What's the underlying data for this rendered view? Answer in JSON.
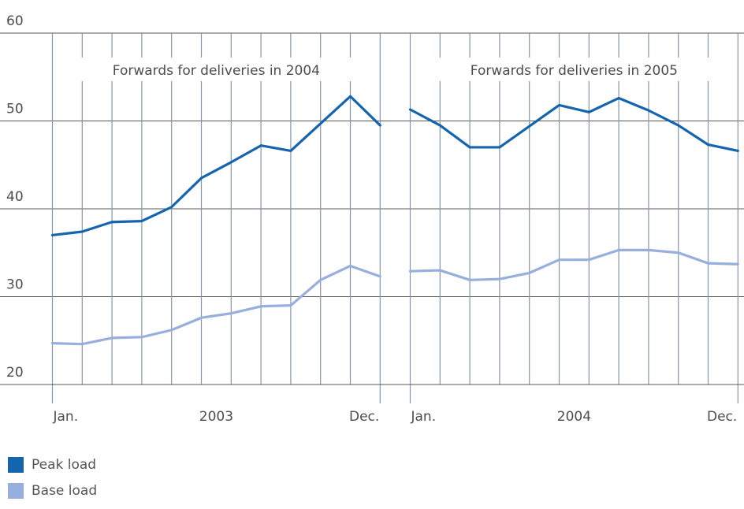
{
  "chart_data": {
    "type": "line",
    "ylim": [
      20,
      60
    ],
    "yticks": [
      "20",
      "30",
      "40",
      "50",
      "60"
    ],
    "panels": [
      {
        "title": "Forwards for deliveries in 2004",
        "x_labels": [
          "Jan.",
          "2003",
          "Dec."
        ],
        "series": [
          {
            "name": "Peak load",
            "color": "#1565ae",
            "values": [
              37.0,
              37.4,
              38.5,
              38.6,
              40.2,
              43.5,
              45.3,
              47.2,
              46.6,
              49.7,
              52.8,
              49.5
            ]
          },
          {
            "name": "Base load",
            "color": "#97afdc",
            "values": [
              24.7,
              24.6,
              25.3,
              25.4,
              26.2,
              27.6,
              28.1,
              28.9,
              29.0,
              31.9,
              33.5,
              32.3
            ]
          }
        ]
      },
      {
        "title": "Forwards for deliveries in 2005",
        "x_labels": [
          "Jan.",
          "2004",
          "Dec."
        ],
        "series": [
          {
            "name": "Peak load",
            "color": "#1565ae",
            "values": [
              51.3,
              49.5,
              47.0,
              47.0,
              49.4,
              51.8,
              51.0,
              52.6,
              51.2,
              49.5,
              47.3,
              46.6
            ]
          },
          {
            "name": "Base load",
            "color": "#97afdc",
            "values": [
              32.9,
              33.0,
              31.9,
              32.0,
              32.7,
              34.2,
              34.2,
              35.3,
              35.3,
              35.0,
              33.8,
              33.7
            ]
          }
        ]
      }
    ],
    "legend": [
      {
        "label": "Peak load",
        "color": "#1565ae"
      },
      {
        "label": "Base load",
        "color": "#97afdc"
      }
    ],
    "grid": true
  }
}
